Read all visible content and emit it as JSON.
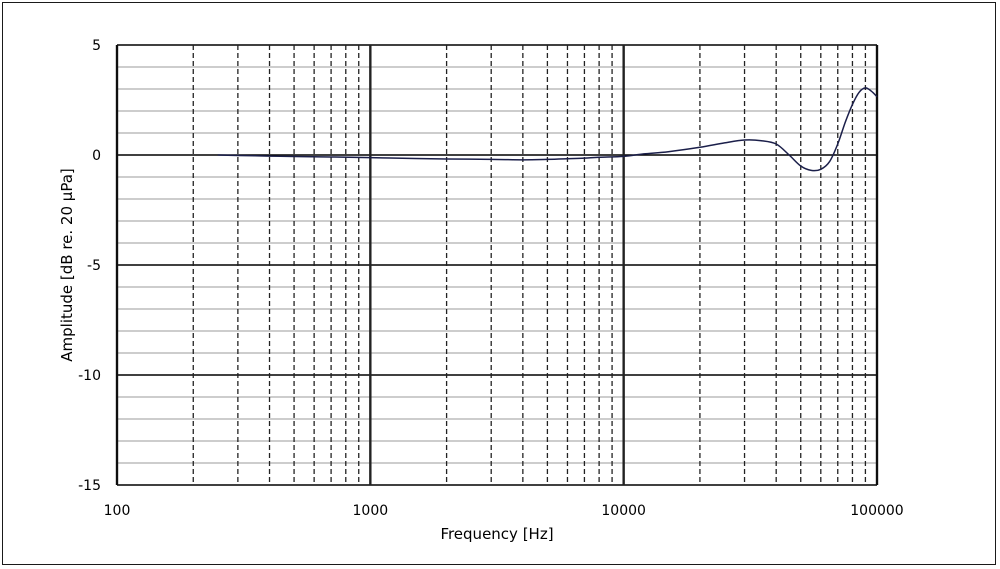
{
  "chart_data": {
    "type": "line",
    "title": "",
    "xlabel": "Frequency  [Hz]",
    "ylabel": "Amplitude  [dB re. 20 µPa]",
    "x_scale": "log",
    "xlim": [
      100,
      100000
    ],
    "ylim": [
      -15,
      5
    ],
    "x_ticks": [
      100,
      1000,
      10000,
      100000
    ],
    "x_tick_labels": [
      "100",
      "1000",
      "10000",
      "100000"
    ],
    "y_ticks": [
      5,
      0,
      -5,
      -10,
      -15
    ],
    "y_tick_labels": [
      "5",
      "0",
      "-5",
      "-10",
      "-15"
    ],
    "y_minor_step": 1,
    "grid": true,
    "legend": "none",
    "colors": {
      "line": "#1b1f4a",
      "grid_major": "#000000",
      "grid_minor": "#7a7a7a",
      "vgrid": "#222222"
    },
    "series": [
      {
        "x": [
          250,
          300,
          400,
          500,
          700,
          1000,
          1500,
          2000,
          3000,
          4000,
          5000,
          6000,
          7000,
          8000,
          10000,
          12000,
          15000,
          20000,
          25000,
          30000,
          35000,
          40000,
          45000,
          50000,
          55000,
          60000,
          65000,
          70000,
          75000,
          80000,
          85000,
          90000,
          95000,
          100000
        ],
        "y": [
          0.0,
          -0.02,
          -0.05,
          -0.07,
          -0.09,
          -0.12,
          -0.16,
          -0.18,
          -0.2,
          -0.22,
          -0.2,
          -0.17,
          -0.14,
          -0.1,
          -0.06,
          0.05,
          0.15,
          0.35,
          0.55,
          0.68,
          0.65,
          0.5,
          0.0,
          -0.5,
          -0.7,
          -0.65,
          -0.3,
          0.5,
          1.5,
          2.3,
          2.85,
          3.05,
          2.9,
          2.65
        ]
      }
    ]
  }
}
